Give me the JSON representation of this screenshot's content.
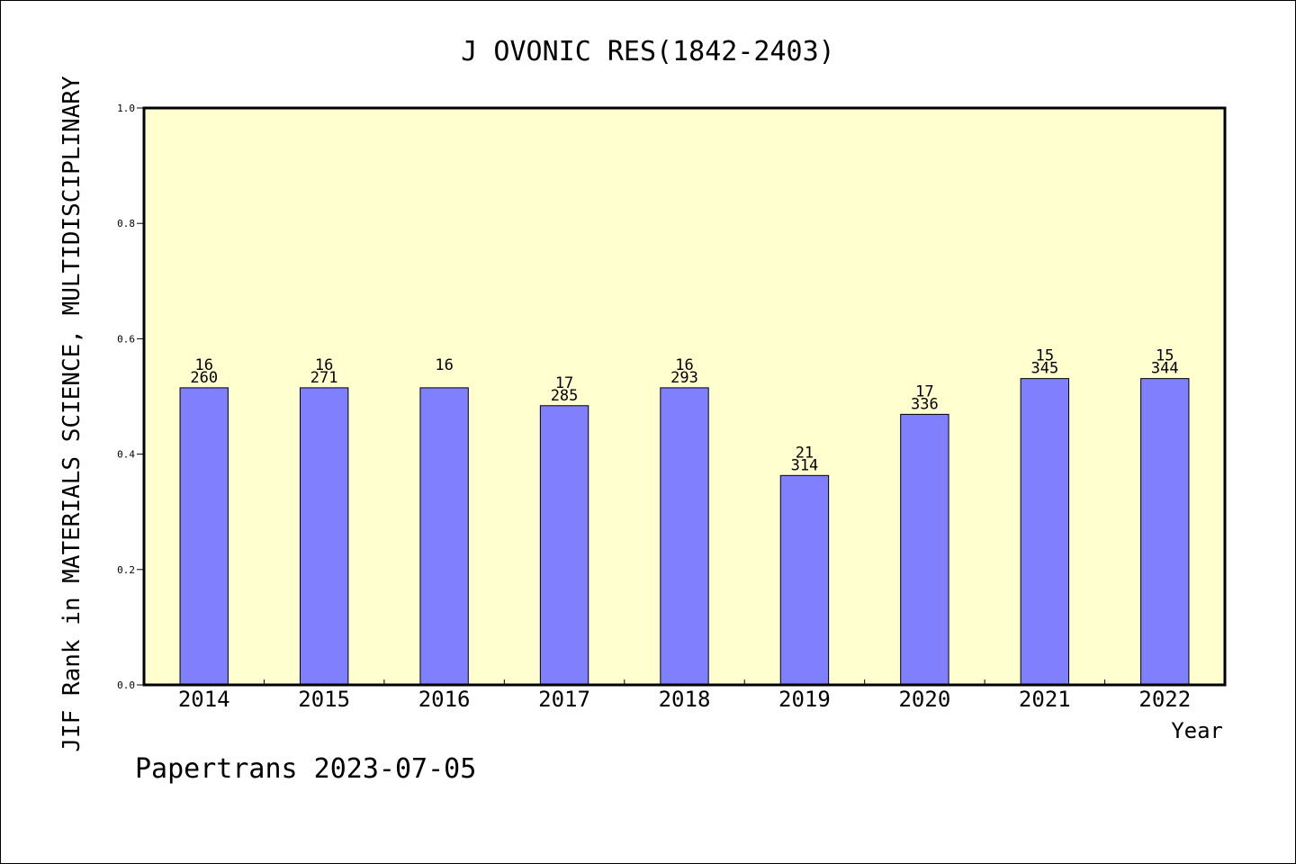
{
  "chart_data": {
    "type": "bar",
    "title": "J OVONIC RES(1842-2403)",
    "xlabel": "Year",
    "ylabel": "JIF Rank in MATERIALS SCIENCE, MULTIDISCIPLINARY",
    "ylim": [
      0,
      1.0
    ],
    "yticks": [
      "0.0",
      "0.2",
      "0.4",
      "0.6",
      "0.8",
      "1.0"
    ],
    "grid": false,
    "categories": [
      "2014",
      "2015",
      "2016",
      "2017",
      "2018",
      "2019",
      "2020",
      "2021",
      "2022"
    ],
    "values": [
      0.515,
      0.515,
      0.515,
      0.484,
      0.515,
      0.363,
      0.469,
      0.531,
      0.531
    ],
    "ranks": [
      "16",
      "16",
      "16",
      "17",
      "16",
      "21",
      "17",
      "15",
      "15"
    ],
    "totals": [
      "260",
      "271",
      "",
      "285",
      "293",
      "314",
      "336",
      "345",
      "344"
    ]
  },
  "footer": "Papertrans 2023-07-05",
  "colors": {
    "plot_background": "#ffffd0",
    "bar_fill": "#8080ff",
    "bar_stroke": "#000000"
  }
}
